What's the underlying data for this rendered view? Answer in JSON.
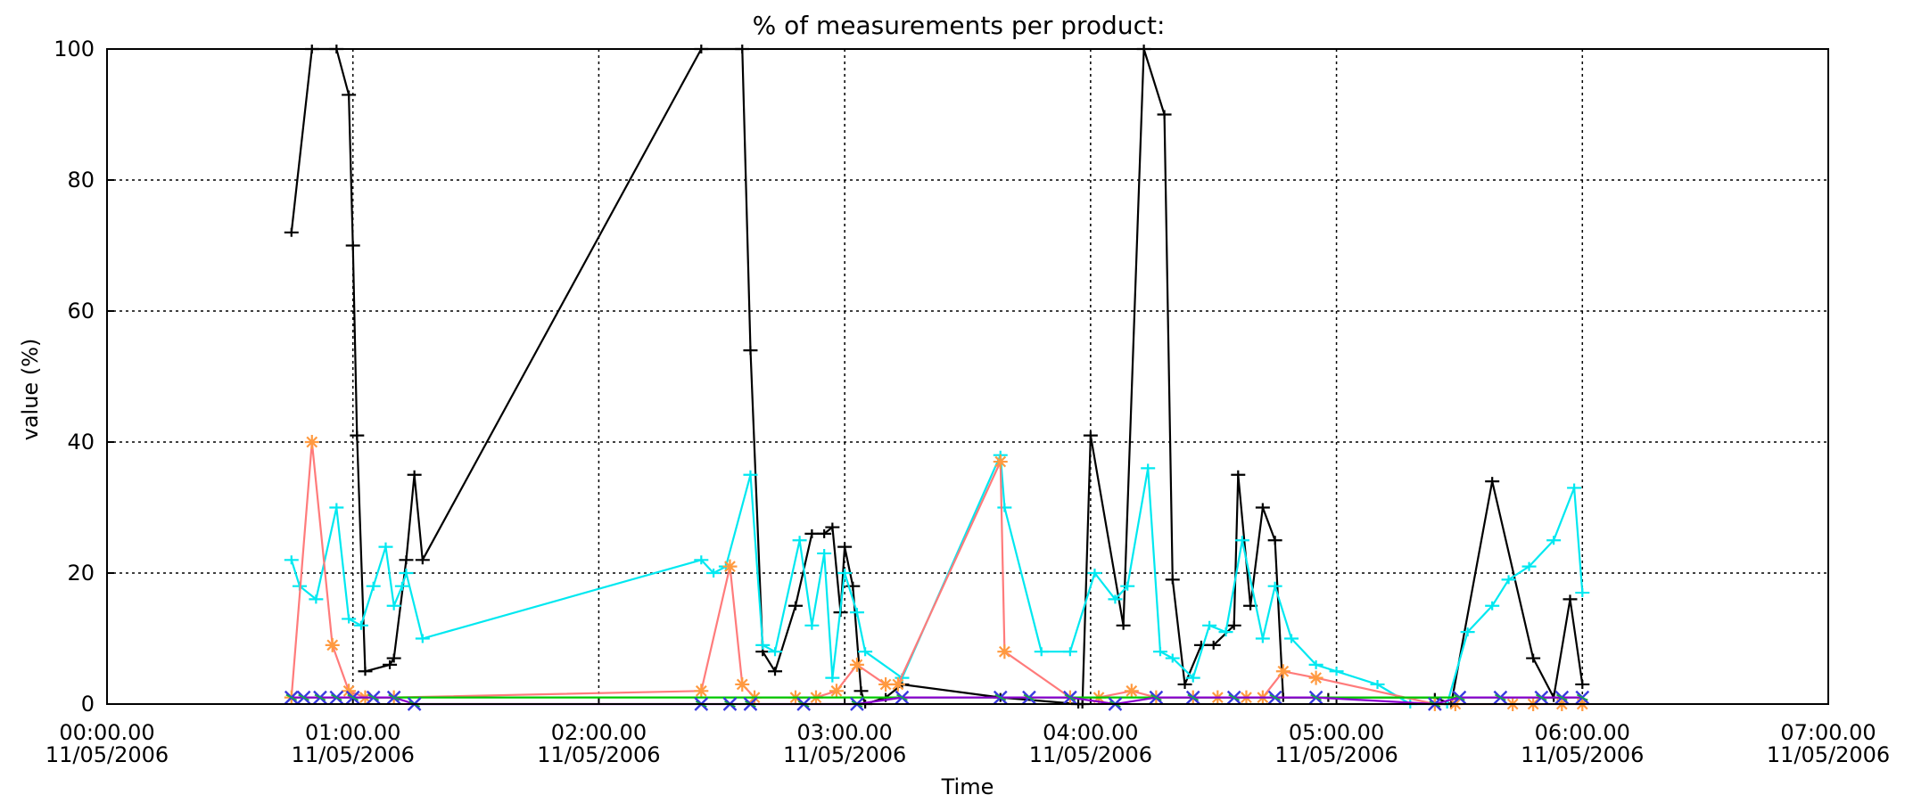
{
  "chart_data": {
    "type": "line",
    "title": "% of measurements per product:",
    "xlabel": "Time",
    "ylabel": "value (%)",
    "xlim": [
      "00:00",
      "07:00"
    ],
    "ylim": [
      0,
      100
    ],
    "x_ticks": [
      {
        "time": "00:00",
        "line1": "00:00.00",
        "line2": "11/05/2006"
      },
      {
        "time": "01:00",
        "line1": "01:00.00",
        "line2": "11/05/2006"
      },
      {
        "time": "02:00",
        "line1": "02:00.00",
        "line2": "11/05/2006"
      },
      {
        "time": "03:00",
        "line1": "03:00.00",
        "line2": "11/05/2006"
      },
      {
        "time": "04:00",
        "line1": "04:00.00",
        "line2": "11/05/2006"
      },
      {
        "time": "05:00",
        "line1": "05:00.00",
        "line2": "11/05/2006"
      },
      {
        "time": "06:00",
        "line1": "06:00.00",
        "line2": "11/05/2006"
      },
      {
        "time": "07:00",
        "line1": "07:00.00",
        "line2": "11/05/2006"
      }
    ],
    "y_ticks": [
      0,
      20,
      40,
      60,
      80,
      100
    ],
    "grid": true,
    "series": [
      {
        "color": "#000000",
        "marker": "tick",
        "points": [
          [
            "00:45",
            72
          ],
          [
            "00:50",
            100
          ],
          [
            "00:56",
            100
          ],
          [
            "00:59",
            93
          ],
          [
            "01:00",
            70
          ],
          [
            "01:01",
            41
          ],
          [
            "01:03",
            5
          ],
          [
            "01:09",
            6
          ],
          [
            "01:10",
            7
          ],
          [
            "01:13",
            22
          ],
          [
            "01:15",
            35
          ],
          [
            "01:17",
            22
          ],
          [
            "02:25",
            100
          ],
          [
            "02:35",
            100
          ],
          [
            "02:37",
            54
          ],
          [
            "02:40",
            8
          ],
          [
            "02:43",
            5
          ],
          [
            "02:48",
            15
          ],
          [
            "02:52",
            26
          ],
          [
            "02:55",
            26
          ],
          [
            "02:57",
            27
          ],
          [
            "02:59",
            14
          ],
          [
            "03:00",
            24
          ],
          [
            "03:02",
            18
          ],
          [
            "03:04",
            2
          ],
          [
            "03:05",
            0
          ],
          [
            "03:10",
            1
          ],
          [
            "03:14",
            3
          ],
          [
            "03:38",
            1
          ],
          [
            "03:57",
            0
          ],
          [
            "03:58",
            0
          ],
          [
            "04:00",
            41
          ],
          [
            "04:08",
            12
          ],
          [
            "04:13",
            100
          ],
          [
            "04:18",
            90
          ],
          [
            "04:20",
            19
          ],
          [
            "04:23",
            3
          ],
          [
            "04:27",
            9
          ],
          [
            "04:30",
            9
          ],
          [
            "04:35",
            12
          ],
          [
            "04:36",
            35
          ],
          [
            "04:39",
            15
          ],
          [
            "04:42",
            30
          ],
          [
            "04:45",
            25
          ],
          [
            "04:47",
            1
          ],
          [
            "04:58",
            1
          ],
          [
            "05:24",
            1
          ],
          [
            "05:28",
            0
          ],
          [
            "05:38",
            34
          ],
          [
            "05:48",
            7
          ],
          [
            "05:53",
            1
          ],
          [
            "05:57",
            16
          ],
          [
            "06:00",
            3
          ]
        ]
      },
      {
        "color": "#00e8f0",
        "marker": "tick",
        "points": [
          [
            "00:45",
            22
          ],
          [
            "00:47",
            18
          ],
          [
            "00:51",
            16
          ],
          [
            "00:56",
            30
          ],
          [
            "00:59",
            13
          ],
          [
            "01:02",
            12
          ],
          [
            "01:05",
            18
          ],
          [
            "01:08",
            24
          ],
          [
            "01:10",
            15
          ],
          [
            "01:12",
            18
          ],
          [
            "01:13",
            20
          ],
          [
            "01:17",
            10
          ],
          [
            "02:25",
            22
          ],
          [
            "02:28",
            20
          ],
          [
            "02:31",
            21
          ],
          [
            "02:37",
            35
          ],
          [
            "02:40",
            9
          ],
          [
            "02:43",
            8
          ],
          [
            "02:49",
            25
          ],
          [
            "02:52",
            12
          ],
          [
            "02:55",
            23
          ],
          [
            "02:57",
            4
          ],
          [
            "03:00",
            20
          ],
          [
            "03:03",
            14
          ],
          [
            "03:05",
            8
          ],
          [
            "03:14",
            4
          ],
          [
            "03:38",
            38
          ],
          [
            "03:39",
            30
          ],
          [
            "03:48",
            8
          ],
          [
            "03:55",
            8
          ],
          [
            "04:01",
            20
          ],
          [
            "04:06",
            16
          ],
          [
            "04:09",
            18
          ],
          [
            "04:14",
            36
          ],
          [
            "04:17",
            8
          ],
          [
            "04:20",
            7
          ],
          [
            "04:25",
            4
          ],
          [
            "04:29",
            12
          ],
          [
            "04:33",
            11
          ],
          [
            "04:37",
            25
          ],
          [
            "04:42",
            10
          ],
          [
            "04:45",
            18
          ],
          [
            "04:49",
            10
          ],
          [
            "04:55",
            6
          ],
          [
            "05:00",
            5
          ],
          [
            "05:10",
            3
          ],
          [
            "05:18",
            0
          ],
          [
            "05:27",
            0
          ],
          [
            "05:32",
            11
          ],
          [
            "05:38",
            15
          ],
          [
            "05:42",
            19
          ],
          [
            "05:47",
            21
          ],
          [
            "05:53",
            25
          ],
          [
            "05:58",
            33
          ],
          [
            "06:00",
            17
          ]
        ]
      },
      {
        "color": "#ff7b7b",
        "marker": "star",
        "points": [
          [
            "00:45",
            1
          ],
          [
            "00:50",
            40
          ],
          [
            "00:55",
            9
          ],
          [
            "00:59",
            2
          ],
          [
            "01:03",
            1
          ],
          [
            "01:10",
            1
          ],
          [
            "02:25",
            2
          ],
          [
            "02:32",
            21
          ],
          [
            "02:35",
            3
          ],
          [
            "02:38",
            1
          ],
          [
            "02:48",
            1
          ],
          [
            "02:53",
            1
          ],
          [
            "02:58",
            2
          ],
          [
            "03:03",
            6
          ],
          [
            "03:10",
            3
          ],
          [
            "03:13",
            3
          ],
          [
            "03:38",
            37
          ],
          [
            "03:39",
            8
          ],
          [
            "03:55",
            1
          ],
          [
            "04:02",
            1
          ],
          [
            "04:10",
            2
          ],
          [
            "04:16",
            1
          ],
          [
            "04:25",
            1
          ],
          [
            "04:31",
            1
          ],
          [
            "04:38",
            1
          ],
          [
            "04:42",
            1
          ],
          [
            "04:47",
            5
          ],
          [
            "04:55",
            4
          ],
          [
            "05:24",
            0
          ],
          [
            "05:29",
            0
          ],
          [
            "05:43",
            0
          ],
          [
            "05:48",
            0
          ],
          [
            "05:55",
            0
          ],
          [
            "06:00",
            0
          ]
        ]
      },
      {
        "color": "#00c800",
        "marker": "none",
        "points": [
          [
            "00:45",
            1
          ],
          [
            "01:17",
            1
          ],
          [
            "02:25",
            1
          ],
          [
            "02:47",
            1
          ],
          [
            "03:00",
            1
          ],
          [
            "03:14",
            1
          ],
          [
            "03:38",
            1
          ],
          [
            "04:00",
            1
          ],
          [
            "04:30",
            1
          ],
          [
            "05:00",
            1
          ],
          [
            "05:24",
            1
          ],
          [
            "06:00",
            1
          ]
        ]
      },
      {
        "color": "#8b00d0",
        "marker": "x",
        "points": [
          [
            "00:45",
            1
          ],
          [
            "00:48",
            1
          ],
          [
            "00:52",
            1
          ],
          [
            "00:56",
            1
          ],
          [
            "01:00",
            1
          ],
          [
            "01:05",
            1
          ],
          [
            "01:10",
            1
          ],
          [
            "01:15",
            0
          ],
          [
            "02:25",
            0
          ],
          [
            "02:32",
            0
          ],
          [
            "02:37",
            0
          ],
          [
            "02:50",
            0
          ],
          [
            "03:03",
            0
          ],
          [
            "03:14",
            1
          ],
          [
            "03:38",
            1
          ],
          [
            "03:45",
            1
          ],
          [
            "03:55",
            1
          ],
          [
            "04:06",
            0
          ],
          [
            "04:16",
            1
          ],
          [
            "04:25",
            1
          ],
          [
            "04:35",
            1
          ],
          [
            "04:45",
            1
          ],
          [
            "04:55",
            1
          ],
          [
            "05:24",
            0
          ],
          [
            "05:30",
            1
          ],
          [
            "05:40",
            1
          ],
          [
            "05:50",
            1
          ],
          [
            "05:55",
            1
          ],
          [
            "06:00",
            1
          ]
        ]
      }
    ]
  }
}
